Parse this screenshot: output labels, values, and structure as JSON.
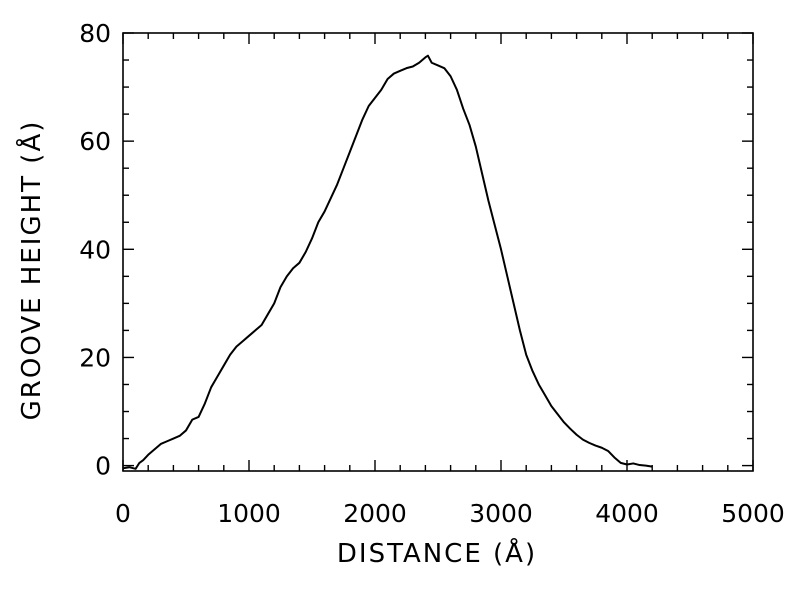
{
  "chart_data": {
    "type": "line",
    "title": "",
    "xlabel": "DISTANCE (Å)",
    "ylabel": "GROOVE HEIGHT (Å)",
    "xlim": [
      0,
      5000
    ],
    "ylim": [
      -1,
      80
    ],
    "x_ticks": [
      0,
      1000,
      2000,
      3000,
      4000,
      5000
    ],
    "y_ticks": [
      0,
      20,
      40,
      60,
      80
    ],
    "x_tick_labels": [
      "0",
      "1000",
      "2000",
      "3000",
      "4000",
      "5000"
    ],
    "y_tick_labels": [
      "0",
      "20",
      "40",
      "60",
      "80"
    ],
    "x_minor_step": 200,
    "y_minor_step": 5,
    "grid": false,
    "series": [
      {
        "x": [
          0,
          50,
          100,
          130,
          160,
          200,
          250,
          300,
          350,
          400,
          450,
          500,
          550,
          600,
          650,
          700,
          750,
          800,
          850,
          900,
          950,
          1000,
          1050,
          1100,
          1150,
          1200,
          1250,
          1300,
          1350,
          1400,
          1450,
          1500,
          1550,
          1600,
          1650,
          1700,
          1750,
          1800,
          1850,
          1900,
          1950,
          2000,
          2050,
          2100,
          2150,
          2200,
          2250,
          2300,
          2350,
          2400,
          2420,
          2450,
          2500,
          2550,
          2600,
          2650,
          2700,
          2750,
          2800,
          2850,
          2900,
          2950,
          3000,
          3050,
          3100,
          3150,
          3200,
          3250,
          3300,
          3350,
          3400,
          3450,
          3500,
          3550,
          3600,
          3650,
          3700,
          3750,
          3800,
          3850,
          3900,
          3950,
          4000,
          4050,
          4100,
          4150,
          4200
        ],
        "y": [
          -0.5,
          -0.3,
          -0.6,
          0.5,
          1.0,
          2.0,
          3.0,
          4.0,
          4.5,
          5.0,
          5.5,
          6.5,
          8.5,
          9.0,
          11.5,
          14.5,
          16.5,
          18.5,
          20.5,
          22.0,
          23.0,
          24.0,
          25.0,
          26.0,
          28.0,
          30.0,
          33.0,
          35.0,
          36.5,
          37.5,
          39.5,
          42.0,
          45.0,
          47.0,
          49.5,
          52.0,
          55.0,
          58.0,
          61.0,
          64.0,
          66.5,
          68.0,
          69.5,
          71.5,
          72.5,
          73.0,
          73.5,
          73.8,
          74.5,
          75.5,
          75.8,
          74.5,
          74.0,
          73.5,
          72.0,
          69.5,
          66.0,
          63.0,
          59.0,
          54.0,
          49.0,
          44.5,
          40.0,
          35.0,
          30.0,
          25.0,
          20.5,
          17.5,
          15.0,
          13.0,
          11.0,
          9.5,
          8.0,
          6.8,
          5.7,
          4.8,
          4.2,
          3.7,
          3.3,
          2.7,
          1.5,
          0.5,
          0.2,
          0.4,
          0.1,
          0.0,
          -0.2
        ]
      }
    ]
  }
}
